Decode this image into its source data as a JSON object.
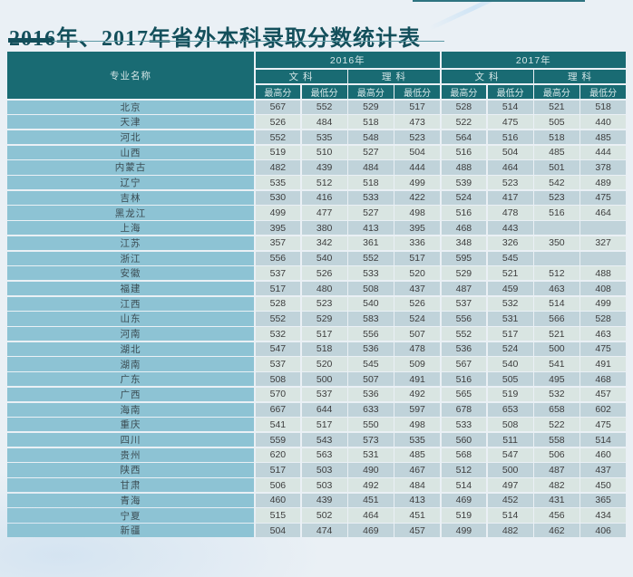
{
  "title": "2016年、2017年省外本科录取分数统计表",
  "table": {
    "province_header": "专业名称",
    "year_groups": [
      {
        "year": "2016年",
        "subjects": [
          "文 科",
          "理 科"
        ]
      },
      {
        "year": "2017年",
        "subjects": [
          "文 科",
          "理 科"
        ]
      }
    ],
    "score_labels": {
      "max": "最高分",
      "min": "最低分"
    },
    "rows": [
      {
        "name": "北京",
        "scores": [
          "567",
          "552",
          "529",
          "517",
          "528",
          "514",
          "521",
          "518"
        ]
      },
      {
        "name": "天津",
        "scores": [
          "526",
          "484",
          "518",
          "473",
          "522",
          "475",
          "505",
          "440"
        ]
      },
      {
        "name": "河北",
        "scores": [
          "552",
          "535",
          "548",
          "523",
          "564",
          "516",
          "518",
          "485"
        ]
      },
      {
        "name": "山西",
        "scores": [
          "519",
          "510",
          "527",
          "504",
          "516",
          "504",
          "485",
          "444"
        ]
      },
      {
        "name": "内蒙古",
        "scores": [
          "482",
          "439",
          "484",
          "444",
          "488",
          "464",
          "501",
          "378"
        ]
      },
      {
        "name": "辽宁",
        "scores": [
          "535",
          "512",
          "518",
          "499",
          "539",
          "523",
          "542",
          "489"
        ]
      },
      {
        "name": "吉林",
        "scores": [
          "530",
          "416",
          "533",
          "422",
          "524",
          "417",
          "523",
          "475"
        ]
      },
      {
        "name": "黑龙江",
        "scores": [
          "499",
          "477",
          "527",
          "498",
          "516",
          "478",
          "516",
          "464"
        ]
      },
      {
        "name": "上海",
        "scores": [
          "395",
          "380",
          "413",
          "395",
          "468",
          "443",
          "",
          ""
        ]
      },
      {
        "name": "江苏",
        "scores": [
          "357",
          "342",
          "361",
          "336",
          "348",
          "326",
          "350",
          "327"
        ]
      },
      {
        "name": "浙江",
        "scores": [
          "556",
          "540",
          "552",
          "517",
          "595",
          "545",
          "",
          ""
        ]
      },
      {
        "name": "安徽",
        "scores": [
          "537",
          "526",
          "533",
          "520",
          "529",
          "521",
          "512",
          "488"
        ]
      },
      {
        "name": "福建",
        "scores": [
          "517",
          "480",
          "508",
          "437",
          "487",
          "459",
          "463",
          "408"
        ]
      },
      {
        "name": "江西",
        "scores": [
          "528",
          "523",
          "540",
          "526",
          "537",
          "532",
          "514",
          "499"
        ]
      },
      {
        "name": "山东",
        "scores": [
          "552",
          "529",
          "583",
          "524",
          "556",
          "531",
          "566",
          "528"
        ]
      },
      {
        "name": "河南",
        "scores": [
          "532",
          "517",
          "556",
          "507",
          "552",
          "517",
          "521",
          "463"
        ]
      },
      {
        "name": "湖北",
        "scores": [
          "547",
          "518",
          "536",
          "478",
          "536",
          "524",
          "500",
          "475"
        ]
      },
      {
        "name": "湖南",
        "scores": [
          "537",
          "520",
          "545",
          "509",
          "567",
          "540",
          "541",
          "491"
        ]
      },
      {
        "name": "广东",
        "scores": [
          "508",
          "500",
          "507",
          "491",
          "516",
          "505",
          "495",
          "468"
        ]
      },
      {
        "name": "广西",
        "scores": [
          "570",
          "537",
          "536",
          "492",
          "565",
          "519",
          "532",
          "457"
        ]
      },
      {
        "name": "海南",
        "scores": [
          "667",
          "644",
          "633",
          "597",
          "678",
          "653",
          "658",
          "602"
        ]
      },
      {
        "name": "重庆",
        "scores": [
          "541",
          "517",
          "550",
          "498",
          "533",
          "508",
          "522",
          "475"
        ]
      },
      {
        "name": "四川",
        "scores": [
          "559",
          "543",
          "573",
          "535",
          "560",
          "511",
          "558",
          "514"
        ]
      },
      {
        "name": "贵州",
        "scores": [
          "620",
          "563",
          "531",
          "485",
          "568",
          "547",
          "506",
          "460"
        ]
      },
      {
        "name": "陕西",
        "scores": [
          "517",
          "503",
          "490",
          "467",
          "512",
          "500",
          "487",
          "437"
        ]
      },
      {
        "name": "甘肃",
        "scores": [
          "506",
          "503",
          "492",
          "484",
          "514",
          "497",
          "482",
          "450"
        ]
      },
      {
        "name": "青海",
        "scores": [
          "460",
          "439",
          "451",
          "413",
          "469",
          "452",
          "431",
          "365"
        ]
      },
      {
        "name": "宁夏",
        "scores": [
          "515",
          "502",
          "464",
          "451",
          "519",
          "514",
          "456",
          "434"
        ]
      },
      {
        "name": "新疆",
        "scores": [
          "504",
          "474",
          "469",
          "457",
          "499",
          "482",
          "462",
          "406"
        ]
      }
    ]
  },
  "colors": {
    "title": "#134f5b",
    "accent_line": "#2e7380",
    "header_bg": "#196b73",
    "province_bg": "#8dc3d4",
    "row_dark": "#c0d3da",
    "row_light": "#d9e5e2"
  }
}
